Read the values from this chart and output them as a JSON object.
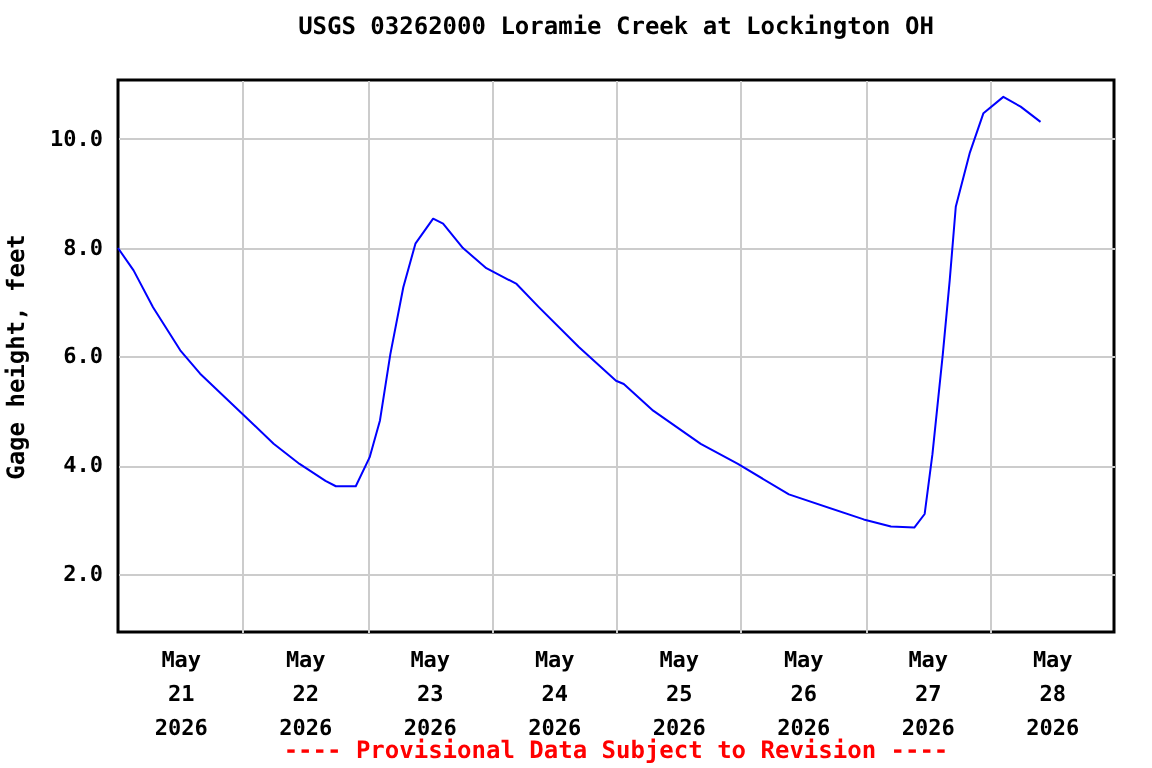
{
  "chart_data": {
    "type": "line",
    "title": "USGS 03262000 Loramie Creek at Lockington OH",
    "ylabel": "Gage height, feet",
    "annotations": [
      "---- Provisional Data Subject to Revision ----"
    ],
    "x": [
      "2026-05-21T00:00",
      "2026-05-21T03:00",
      "2026-05-21T06:45",
      "2026-05-21T12:00",
      "2026-05-21T15:50",
      "2026-05-22T00:00",
      "2026-05-22T06:00",
      "2026-05-22T11:00",
      "2026-05-22T16:00",
      "2026-05-22T18:00",
      "2026-05-22T21:50",
      "2026-05-23T00:30",
      "2026-05-23T02:30",
      "2026-05-23T04:30",
      "2026-05-23T07:00",
      "2026-05-23T09:20",
      "2026-05-23T12:45",
      "2026-05-23T14:40",
      "2026-05-23T18:30",
      "2026-05-23T23:00",
      "2026-05-24T04:50",
      "2026-05-24T09:10",
      "2026-05-24T16:50",
      "2026-05-25T00:00",
      "2026-05-25T01:30",
      "2026-05-25T07:10",
      "2026-05-25T16:20",
      "2026-05-25T23:30",
      "2026-05-26T09:20",
      "2026-05-26T23:45",
      "2026-05-27T05:00",
      "2026-05-27T09:30",
      "2026-05-27T11:30",
      "2026-05-27T13:00",
      "2026-05-27T15:00",
      "2026-05-27T16:20",
      "2026-05-27T17:30",
      "2026-05-27T20:10",
      "2026-05-27T22:50",
      "2026-05-28T02:40",
      "2026-05-28T06:00",
      "2026-05-28T09:50"
    ],
    "series": [
      {
        "color": "#0000ff",
        "values": [
          7.99,
          7.58,
          6.9,
          6.11,
          5.68,
          4.94,
          4.39,
          4.02,
          3.71,
          3.61,
          3.61,
          4.14,
          4.82,
          6.04,
          7.27,
          8.07,
          8.53,
          8.44,
          7.99,
          7.62,
          7.33,
          6.9,
          6.17,
          5.55,
          5.49,
          5.0,
          4.39,
          4.02,
          3.46,
          3.0,
          2.87,
          2.85,
          3.1,
          4.2,
          6.04,
          7.4,
          8.75,
          9.73,
          10.47,
          10.77,
          10.59,
          10.31
        ]
      }
    ],
    "xlim": [
      "2026-05-21T00:00",
      "2026-05-29T00:00"
    ],
    "xticks": [
      {
        "value": "2026-05-21T12:00",
        "label": "May\n21\n2026"
      },
      {
        "value": "2026-05-22T00:00",
        "label": null
      },
      {
        "value": "2026-05-22T12:00",
        "label": "May\n22\n2026"
      },
      {
        "value": "2026-05-23T00:00",
        "label": null
      },
      {
        "value": "2026-05-23T12:00",
        "label": "May\n23\n2026"
      },
      {
        "value": "2026-05-24T00:00",
        "label": null
      },
      {
        "value": "2026-05-24T12:00",
        "label": "May\n24\n2026"
      },
      {
        "value": "2026-05-25T00:00",
        "label": null
      },
      {
        "value": "2026-05-25T12:00",
        "label": "May\n25\n2026"
      },
      {
        "value": "2026-05-26T00:00",
        "label": null
      },
      {
        "value": "2026-05-26T12:00",
        "label": "May\n26\n2026"
      },
      {
        "value": "2026-05-27T00:00",
        "label": null
      },
      {
        "value": "2026-05-27T12:00",
        "label": "May\n27\n2026"
      },
      {
        "value": "2026-05-28T00:00",
        "label": null
      },
      {
        "value": "2026-05-28T12:00",
        "label": "May\n28\n2026"
      }
    ],
    "ylim": [
      0.93,
      11.08
    ],
    "yticks": [
      {
        "value": 2,
        "label": "2.0"
      },
      {
        "value": 4,
        "label": "4.0"
      },
      {
        "value": 6,
        "label": "6.0"
      },
      {
        "value": 8,
        "label": "8.0"
      },
      {
        "value": 10,
        "label": "10.0"
      }
    ],
    "grid": true,
    "marker": "none",
    "line_style": "solid"
  }
}
